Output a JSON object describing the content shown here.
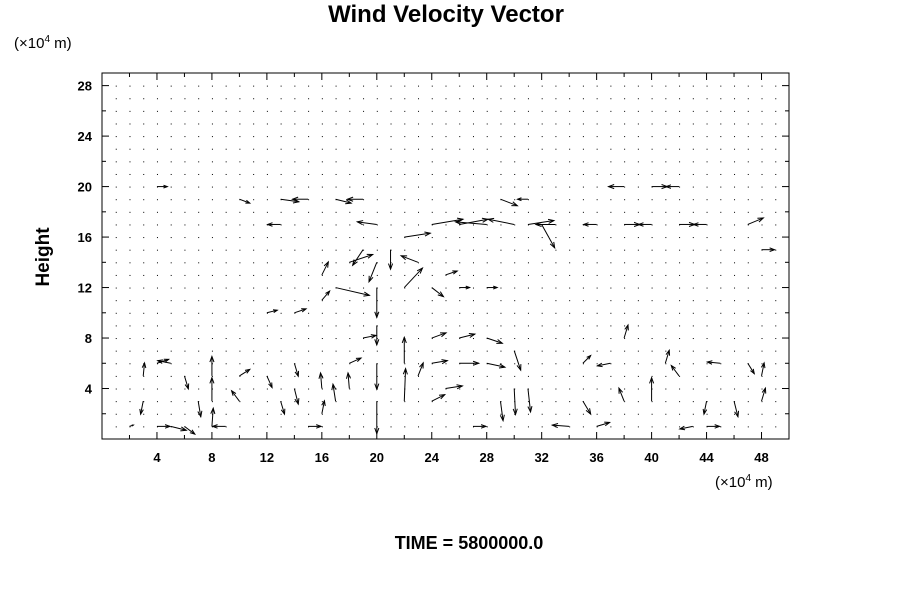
{
  "chart_data": {
    "type": "vector_field",
    "title": "Wind Velocity Vector",
    "ylabel": "Height",
    "y_unit": {
      "prefix": "(×10",
      "exp": "4",
      "suffix": " m)"
    },
    "x_unit": {
      "prefix": "(×10",
      "exp": "4",
      "suffix": " m)"
    },
    "xlim": [
      0,
      50
    ],
    "ylim": [
      0,
      29
    ],
    "xticks": [
      4,
      8,
      12,
      16,
      20,
      24,
      28,
      32,
      36,
      40,
      44,
      48
    ],
    "yticks": [
      4,
      8,
      12,
      16,
      20,
      24,
      28
    ],
    "time_label": "TIME = 5800000.0",
    "vectors": [
      {
        "x": 2,
        "y": 1,
        "u": 0.3,
        "v": 0.1
      },
      {
        "x": 4,
        "y": 1,
        "u": 1.0,
        "v": 0.0
      },
      {
        "x": 5,
        "y": 1,
        "u": 1.2,
        "v": -0.3
      },
      {
        "x": 6,
        "y": 1,
        "u": 0.8,
        "v": -0.6
      },
      {
        "x": 3,
        "y": 3,
        "u": -0.2,
        "v": -1.0
      },
      {
        "x": 3,
        "y": 5,
        "u": 0.1,
        "v": 1.0
      },
      {
        "x": 4,
        "y": 6,
        "u": 0.9,
        "v": 0.3
      },
      {
        "x": 5,
        "y": 6,
        "u": -1.0,
        "v": 0.2
      },
      {
        "x": 6,
        "y": 5,
        "u": 0.3,
        "v": -1.0
      },
      {
        "x": 7,
        "y": 3,
        "u": 0.2,
        "v": -1.2
      },
      {
        "x": 8,
        "y": 1,
        "u": 0.1,
        "v": 1.4
      },
      {
        "x": 8,
        "y": 3,
        "u": 0.0,
        "v": 1.8
      },
      {
        "x": 8,
        "y": 5,
        "u": 0.0,
        "v": 1.5
      },
      {
        "x": 9,
        "y": 1,
        "u": -1.0,
        "v": 0.0
      },
      {
        "x": 10,
        "y": 3,
        "u": -0.6,
        "v": 0.8
      },
      {
        "x": 10,
        "y": 5,
        "u": 0.8,
        "v": 0.5
      },
      {
        "x": 12,
        "y": 5,
        "u": 0.4,
        "v": -0.9
      },
      {
        "x": 13,
        "y": 3,
        "u": 0.3,
        "v": -1.0
      },
      {
        "x": 14,
        "y": 4,
        "u": 0.3,
        "v": -1.2
      },
      {
        "x": 14,
        "y": 6,
        "u": 0.3,
        "v": -1.0
      },
      {
        "x": 15,
        "y": 1,
        "u": 1.0,
        "v": 0.0
      },
      {
        "x": 16,
        "y": 2,
        "u": 0.2,
        "v": 1.0
      },
      {
        "x": 16,
        "y": 4,
        "u": -0.1,
        "v": 1.2
      },
      {
        "x": 17,
        "y": 3,
        "u": -0.2,
        "v": 1.3
      },
      {
        "x": 18,
        "y": 4,
        "u": -0.1,
        "v": 1.2
      },
      {
        "x": 18,
        "y": 6,
        "u": 0.9,
        "v": 0.4
      },
      {
        "x": 19,
        "y": 8,
        "u": 1.0,
        "v": 0.2
      },
      {
        "x": 20,
        "y": 3,
        "u": 0.0,
        "v": -2.5
      },
      {
        "x": 20,
        "y": 6,
        "u": 0.0,
        "v": -2.0
      },
      {
        "x": 20,
        "y": 9,
        "u": 0.0,
        "v": -1.5
      },
      {
        "x": 22,
        "y": 3,
        "u": 0.1,
        "v": 2.5
      },
      {
        "x": 22,
        "y": 6,
        "u": 0.0,
        "v": 2.0
      },
      {
        "x": 23,
        "y": 5,
        "u": 0.4,
        "v": 1.0
      },
      {
        "x": 24,
        "y": 3,
        "u": 1.0,
        "v": 0.5
      },
      {
        "x": 24,
        "y": 6,
        "u": 1.2,
        "v": 0.2
      },
      {
        "x": 24,
        "y": 8,
        "u": 1.1,
        "v": 0.4
      },
      {
        "x": 25,
        "y": 4,
        "u": 1.3,
        "v": 0.2
      },
      {
        "x": 26,
        "y": 6,
        "u": 1.5,
        "v": 0.0
      },
      {
        "x": 26,
        "y": 8,
        "u": 1.2,
        "v": 0.3
      },
      {
        "x": 27,
        "y": 1,
        "u": 1.0,
        "v": 0.0
      },
      {
        "x": 28,
        "y": 6,
        "u": 1.4,
        "v": -0.3
      },
      {
        "x": 28,
        "y": 8,
        "u": 1.2,
        "v": -0.4
      },
      {
        "x": 29,
        "y": 3,
        "u": 0.2,
        "v": -1.5
      },
      {
        "x": 30,
        "y": 4,
        "u": 0.1,
        "v": -2.0
      },
      {
        "x": 30,
        "y": 7,
        "u": 0.5,
        "v": -1.5
      },
      {
        "x": 31,
        "y": 4,
        "u": 0.2,
        "v": -1.8
      },
      {
        "x": 34,
        "y": 1,
        "u": -1.3,
        "v": 0.1
      },
      {
        "x": 35,
        "y": 3,
        "u": 0.6,
        "v": -1.0
      },
      {
        "x": 35,
        "y": 6,
        "u": 0.6,
        "v": 0.6
      },
      {
        "x": 36,
        "y": 1,
        "u": 1.0,
        "v": 0.3
      },
      {
        "x": 37,
        "y": 6,
        "u": -1.0,
        "v": -0.2
      },
      {
        "x": 38,
        "y": 3,
        "u": -0.4,
        "v": 1.0
      },
      {
        "x": 38,
        "y": 8,
        "u": 0.3,
        "v": 1.0
      },
      {
        "x": 40,
        "y": 3,
        "u": 0.0,
        "v": 1.8
      },
      {
        "x": 41,
        "y": 6,
        "u": 0.3,
        "v": 1.0
      },
      {
        "x": 42,
        "y": 5,
        "u": -0.6,
        "v": 0.8
      },
      {
        "x": 43,
        "y": 1,
        "u": -1.0,
        "v": -0.2
      },
      {
        "x": 44,
        "y": 1,
        "u": 1.0,
        "v": 0.0
      },
      {
        "x": 44,
        "y": 3,
        "u": -0.2,
        "v": -1.0
      },
      {
        "x": 45,
        "y": 6,
        "u": -1.0,
        "v": 0.1
      },
      {
        "x": 46,
        "y": 3,
        "u": 0.3,
        "v": -1.2
      },
      {
        "x": 47,
        "y": 6,
        "u": 0.5,
        "v": -0.8
      },
      {
        "x": 48,
        "y": 3,
        "u": 0.3,
        "v": 1.0
      },
      {
        "x": 48,
        "y": 5,
        "u": 0.2,
        "v": 1.0
      },
      {
        "x": 12,
        "y": 10,
        "u": 0.8,
        "v": 0.2
      },
      {
        "x": 14,
        "y": 10,
        "u": 0.9,
        "v": 0.3
      },
      {
        "x": 16,
        "y": 11,
        "u": 0.6,
        "v": 0.7
      },
      {
        "x": 16,
        "y": 13,
        "u": 0.5,
        "v": 1.0
      },
      {
        "x": 17,
        "y": 12,
        "u": 2.6,
        "v": -0.6
      },
      {
        "x": 18,
        "y": 14,
        "u": 1.8,
        "v": 0.6
      },
      {
        "x": 19,
        "y": 15,
        "u": -0.8,
        "v": -1.2
      },
      {
        "x": 20,
        "y": 14,
        "u": -0.6,
        "v": -1.5
      },
      {
        "x": 20,
        "y": 12,
        "u": 0.0,
        "v": -2.3
      },
      {
        "x": 21,
        "y": 15,
        "u": 0.0,
        "v": -1.5
      },
      {
        "x": 22,
        "y": 12,
        "u": 1.4,
        "v": 1.5
      },
      {
        "x": 23,
        "y": 14,
        "u": -1.3,
        "v": 0.5
      },
      {
        "x": 24,
        "y": 12,
        "u": 0.9,
        "v": -0.7
      },
      {
        "x": 25,
        "y": 13,
        "u": 0.9,
        "v": 0.3
      },
      {
        "x": 26,
        "y": 12,
        "u": 0.8,
        "v": 0.0
      },
      {
        "x": 28,
        "y": 12,
        "u": 0.8,
        "v": 0.0
      },
      {
        "x": 22,
        "y": 16,
        "u": 2.0,
        "v": 0.3
      },
      {
        "x": 24,
        "y": 17,
        "u": 2.4,
        "v": 0.4
      },
      {
        "x": 26,
        "y": 17,
        "u": 2.2,
        "v": 0.4
      },
      {
        "x": 28,
        "y": 17,
        "u": -2.4,
        "v": 0.2
      },
      {
        "x": 30,
        "y": 17,
        "u": -2.0,
        "v": 0.4
      },
      {
        "x": 31,
        "y": 17,
        "u": 2.0,
        "v": 0.3
      },
      {
        "x": 32,
        "y": 17,
        "u": 1.0,
        "v": -1.8
      },
      {
        "x": 33,
        "y": 17,
        "u": -1.5,
        "v": 0.0
      },
      {
        "x": 29,
        "y": 19,
        "u": 1.3,
        "v": -0.5
      },
      {
        "x": 31,
        "y": 19,
        "u": -0.8,
        "v": 0.0
      },
      {
        "x": 13,
        "y": 19,
        "u": 1.4,
        "v": -0.2
      },
      {
        "x": 15,
        "y": 19,
        "u": -1.2,
        "v": 0.0
      },
      {
        "x": 17,
        "y": 19,
        "u": 1.2,
        "v": -0.3
      },
      {
        "x": 19,
        "y": 19,
        "u": -1.2,
        "v": 0.0
      },
      {
        "x": 20,
        "y": 17,
        "u": -1.5,
        "v": 0.2
      },
      {
        "x": 10,
        "y": 19,
        "u": 0.8,
        "v": -0.3
      },
      {
        "x": 13,
        "y": 17,
        "u": -1.0,
        "v": 0.0
      },
      {
        "x": 36,
        "y": 17,
        "u": -1.0,
        "v": 0.0
      },
      {
        "x": 38,
        "y": 17,
        "u": 1.2,
        "v": 0.0
      },
      {
        "x": 40,
        "y": 17,
        "u": -1.0,
        "v": 0.0
      },
      {
        "x": 42,
        "y": 17,
        "u": 1.2,
        "v": 0.0
      },
      {
        "x": 44,
        "y": 17,
        "u": -1.0,
        "v": 0.0
      },
      {
        "x": 47,
        "y": 17,
        "u": 1.2,
        "v": 0.5
      },
      {
        "x": 38,
        "y": 20,
        "u": -1.2,
        "v": 0.0
      },
      {
        "x": 40,
        "y": 20,
        "u": 1.2,
        "v": 0.0
      },
      {
        "x": 42,
        "y": 20,
        "u": -1.0,
        "v": 0.0
      },
      {
        "x": 4,
        "y": 20,
        "u": 0.8,
        "v": 0.0
      },
      {
        "x": 48,
        "y": 15,
        "u": 1.0,
        "v": 0.0
      }
    ]
  }
}
